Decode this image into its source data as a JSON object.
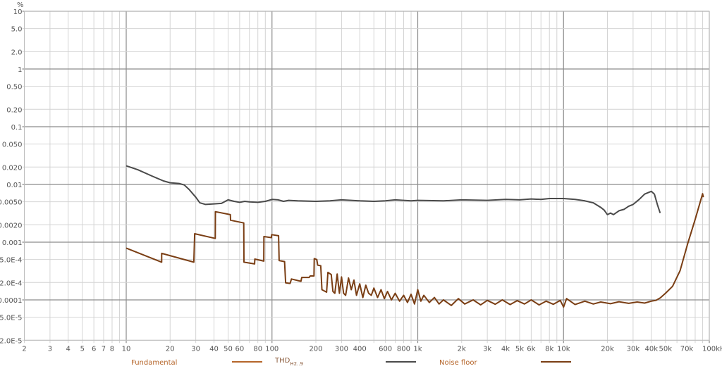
{
  "chart_data": {
    "type": "line",
    "title": "",
    "xlabel": "",
    "ylabel": "%",
    "xscale": "log",
    "yscale": "log",
    "xlim": [
      2,
      100000
    ],
    "ylim": [
      2e-05,
      10
    ],
    "grid": true,
    "legend_position": "bottom",
    "x_unit": "Hz",
    "x_ticks": [
      {
        "v": 2,
        "label": "2"
      },
      {
        "v": 3,
        "label": "3"
      },
      {
        "v": 4,
        "label": "4"
      },
      {
        "v": 5,
        "label": "5"
      },
      {
        "v": 6,
        "label": "6"
      },
      {
        "v": 7,
        "label": "7"
      },
      {
        "v": 8,
        "label": "8"
      },
      {
        "v": 10,
        "label": "10"
      },
      {
        "v": 20,
        "label": "20"
      },
      {
        "v": 30,
        "label": "30"
      },
      {
        "v": 40,
        "label": "40"
      },
      {
        "v": 50,
        "label": "50"
      },
      {
        "v": 60,
        "label": "60"
      },
      {
        "v": 80,
        "label": "80"
      },
      {
        "v": 100,
        "label": "100"
      },
      {
        "v": 200,
        "label": "200"
      },
      {
        "v": 300,
        "label": "300"
      },
      {
        "v": 400,
        "label": "400"
      },
      {
        "v": 600,
        "label": "600"
      },
      {
        "v": 800,
        "label": "800"
      },
      {
        "v": 1000,
        "label": "1k"
      },
      {
        "v": 2000,
        "label": "2k"
      },
      {
        "v": 3000,
        "label": "3k"
      },
      {
        "v": 4000,
        "label": "4k"
      },
      {
        "v": 5000,
        "label": "5k"
      },
      {
        "v": 6000,
        "label": "6k"
      },
      {
        "v": 8000,
        "label": "8k"
      },
      {
        "v": 10000,
        "label": "10k"
      },
      {
        "v": 20000,
        "label": "20k"
      },
      {
        "v": 30000,
        "label": "30k"
      },
      {
        "v": 40000,
        "label": "40k"
      },
      {
        "v": 50000,
        "label": "50k"
      },
      {
        "v": 70000,
        "label": "70k"
      },
      {
        "v": 100000,
        "label": "100kHz"
      }
    ],
    "y_ticks": [
      {
        "v": 10,
        "label": "10"
      },
      {
        "v": 5,
        "label": "5.0"
      },
      {
        "v": 2,
        "label": "2.0"
      },
      {
        "v": 1,
        "label": "1"
      },
      {
        "v": 0.5,
        "label": "0.50"
      },
      {
        "v": 0.2,
        "label": "0.20"
      },
      {
        "v": 0.1,
        "label": "0.1"
      },
      {
        "v": 0.05,
        "label": "0.050"
      },
      {
        "v": 0.02,
        "label": "0.020"
      },
      {
        "v": 0.01,
        "label": "0.01"
      },
      {
        "v": 0.005,
        "label": "0.0050"
      },
      {
        "v": 0.002,
        "label": "0.0020"
      },
      {
        "v": 0.001,
        "label": "0.001"
      },
      {
        "v": 0.0005,
        "label": "5.0E-4"
      },
      {
        "v": 0.0002,
        "label": "2.0E-4"
      },
      {
        "v": 0.0001,
        "label": "0.0001"
      },
      {
        "v": 5e-05,
        "label": "5.0E-5"
      },
      {
        "v": 2e-05,
        "label": "2.0E-5"
      }
    ],
    "series": [
      {
        "name": "Fundamental",
        "color": "#b5652a",
        "x": [],
        "y": []
      },
      {
        "name": "THD H2..9",
        "label_main": "THD",
        "label_sub": "H2..9",
        "color": "#4a4a4a",
        "x": [
          10,
          12,
          15,
          18,
          20,
          23,
          25,
          27,
          30,
          32,
          35,
          40,
          45,
          50,
          55,
          60,
          65,
          70,
          80,
          90,
          100,
          110,
          120,
          130,
          150,
          200,
          250,
          300,
          350,
          400,
          500,
          600,
          700,
          800,
          900,
          1000,
          1500,
          2000,
          3000,
          4000,
          5000,
          6000,
          7000,
          8000,
          10000,
          12000,
          14000,
          16000,
          18000,
          19000,
          20000,
          21000,
          22000,
          24000,
          26000,
          28000,
          30000,
          33000,
          36000,
          38000,
          40000,
          42000,
          44000,
          46000
        ],
        "y": [
          0.021,
          0.018,
          0.014,
          0.0115,
          0.0107,
          0.0104,
          0.0098,
          0.0082,
          0.006,
          0.0048,
          0.0045,
          0.0046,
          0.0047,
          0.0054,
          0.0051,
          0.0049,
          0.0051,
          0.005,
          0.0049,
          0.0051,
          0.0055,
          0.0054,
          0.0051,
          0.0053,
          0.0052,
          0.0051,
          0.0052,
          0.0054,
          0.0053,
          0.0052,
          0.0051,
          0.0052,
          0.0054,
          0.0053,
          0.0052,
          0.0053,
          0.0052,
          0.0054,
          0.0053,
          0.0055,
          0.0054,
          0.0056,
          0.0055,
          0.0057,
          0.0057,
          0.0055,
          0.0052,
          0.0048,
          0.004,
          0.0036,
          0.003,
          0.0032,
          0.003,
          0.0035,
          0.0037,
          0.0042,
          0.0045,
          0.0055,
          0.0068,
          0.0072,
          0.0076,
          0.0068,
          0.0045,
          0.0032
        ]
      },
      {
        "name": "Noise floor",
        "color": "#7a3e14",
        "x": [
          10,
          17.5,
          17.5,
          29.1,
          29.5,
          40.8,
          40.9,
          51.8,
          52,
          64,
          64.2,
          76,
          76.2,
          87.8,
          88,
          99,
          99.5,
          111,
          112,
          122,
          124,
          133,
          136,
          158,
          160,
          180,
          183,
          194,
          195,
          203,
          206,
          216,
          220,
          237,
          242,
          255,
          262,
          270,
          280,
          290,
          300,
          310,
          320,
          335,
          350,
          365,
          380,
          400,
          420,
          440,
          460,
          480,
          500,
          530,
          560,
          590,
          620,
          660,
          700,
          750,
          800,
          850,
          900,
          950,
          1000,
          1050,
          1100,
          1200,
          1300,
          1400,
          1500,
          1700,
          1900,
          2100,
          2400,
          2700,
          3000,
          3400,
          3800,
          4300,
          4800,
          5400,
          6000,
          6800,
          7600,
          8500,
          9500,
          10000,
          10500,
          12000,
          14000,
          16000,
          18000,
          21000,
          24000,
          28000,
          32000,
          36000,
          40000,
          43000,
          46000,
          50000,
          56000,
          63000,
          71000,
          80000,
          90000,
          91000
        ],
        "y": [
          0.00079,
          0.00045,
          0.00064,
          0.00045,
          0.0014,
          0.00116,
          0.00337,
          0.003,
          0.0024,
          0.00215,
          0.00045,
          0.00042,
          0.00051,
          0.00047,
          0.00125,
          0.0012,
          0.00135,
          0.00129,
          0.00048,
          0.00046,
          0.000198,
          0.000193,
          0.00023,
          0.00021,
          0.000245,
          0.000245,
          0.00026,
          0.00026,
          0.00052,
          0.0005,
          0.0004,
          0.00039,
          0.00015,
          0.000136,
          0.0003,
          0.000275,
          0.00014,
          0.00013,
          0.00028,
          0.00013,
          0.00025,
          0.00013,
          0.00012,
          0.00024,
          0.00015,
          0.00022,
          0.00012,
          0.00019,
          0.00011,
          0.00018,
          0.00013,
          0.00012,
          0.00016,
          0.00011,
          0.00015,
          0.000105,
          0.00014,
          0.0001,
          0.00013,
          9.5e-05,
          0.00012,
          9e-05,
          0.000125,
          8.5e-05,
          0.00015,
          9.5e-05,
          0.00012,
          9e-05,
          0.00011,
          8.5e-05,
          0.0001,
          8e-05,
          0.000105,
          8.5e-05,
          0.0001,
          8.2e-05,
          9.8e-05,
          8.4e-05,
          0.0001,
          8.3e-05,
          9.7e-05,
          8.5e-05,
          0.0001,
          8.2e-05,
          9.5e-05,
          8.4e-05,
          9.8e-05,
          7.5e-05,
          0.000105,
          8.3e-05,
          9.5e-05,
          8.5e-05,
          9.2e-05,
          8.6e-05,
          9.3e-05,
          8.7e-05,
          9.2e-05,
          8.8e-05,
          9.5e-05,
          9.8e-05,
          0.000108,
          0.00013,
          0.000172,
          0.00032,
          0.00093,
          0.0025,
          0.0069,
          0.006
        ]
      }
    ]
  }
}
